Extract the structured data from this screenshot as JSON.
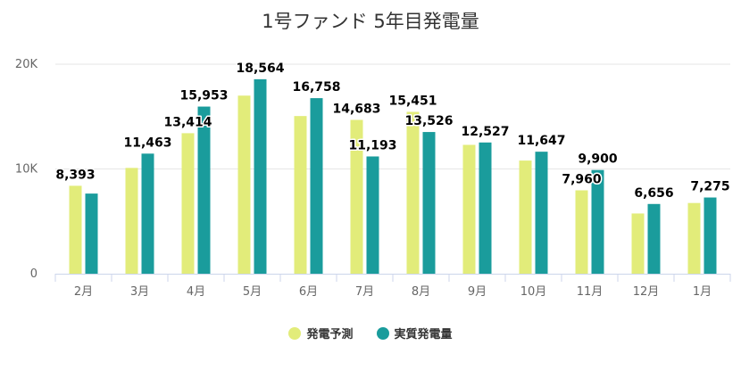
{
  "chart_data": {
    "type": "bar",
    "title": "1号ファンド 5年目発電量",
    "categories": [
      "2月",
      "3月",
      "4月",
      "5月",
      "6月",
      "7月",
      "8月",
      "9月",
      "10月",
      "11月",
      "12月",
      "1月"
    ],
    "series": [
      {
        "name": "発電予測",
        "color": "#e2ec7a",
        "values": [
          8393,
          10100,
          13414,
          17000,
          15050,
          14683,
          15451,
          12300,
          10800,
          7960,
          5750,
          6750
        ],
        "labels": [
          "8,393",
          "",
          "13,414",
          "",
          "",
          "14,683",
          "15,451",
          "",
          "",
          "7,960",
          "",
          ""
        ]
      },
      {
        "name": "実質発電量",
        "color": "#1a9c9c",
        "values": [
          7650,
          11463,
          15953,
          18564,
          16758,
          11193,
          13526,
          12527,
          11647,
          9900,
          6656,
          7275
        ],
        "labels": [
          "",
          "11,463",
          "15,953",
          "18,564",
          "16,758",
          "11,193",
          "13,526",
          "12,527",
          "11,647",
          "9,900",
          "6,656",
          "7,275"
        ]
      }
    ],
    "yticks": [
      {
        "value": 0,
        "label": "0"
      },
      {
        "value": 10000,
        "label": "10K"
      },
      {
        "value": 20000,
        "label": "20K"
      }
    ],
    "ylim": [
      0,
      20000
    ],
    "grid": true,
    "legend_position": "bottom"
  }
}
